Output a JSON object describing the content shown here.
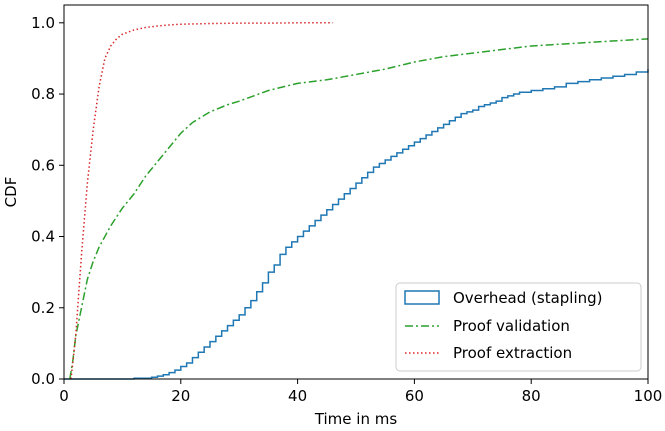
{
  "chart_data": {
    "type": "line",
    "title": "",
    "xlabel": "Time in ms",
    "ylabel": "CDF",
    "xlim": [
      0,
      100
    ],
    "ylim": [
      0,
      1.05
    ],
    "xticks": [
      0,
      20,
      40,
      60,
      80,
      100
    ],
    "yticks": [
      0.0,
      0.2,
      0.4,
      0.6,
      0.8,
      1.0
    ],
    "xtick_labels": [
      "0",
      "20",
      "40",
      "60",
      "80",
      "100"
    ],
    "ytick_labels": [
      "0.0",
      "0.2",
      "0.4",
      "0.6",
      "0.8",
      "1.0"
    ],
    "grid": false,
    "legend_position": "lower-right",
    "series": [
      {
        "name": "Overhead (stapling)",
        "style": "steps",
        "color": "#1f77b4",
        "x": [
          0,
          9,
          12,
          15,
          16,
          17,
          18,
          19,
          20,
          21,
          22,
          23,
          24,
          25,
          26,
          27,
          28,
          29,
          30,
          31,
          32,
          33,
          34,
          35,
          36,
          37,
          38,
          39,
          40,
          41,
          42,
          43,
          44,
          45,
          46,
          47,
          48,
          49,
          50,
          51,
          52,
          53,
          54,
          55,
          56,
          57,
          58,
          59,
          60,
          61,
          62,
          63,
          64,
          65,
          66,
          67,
          68,
          69,
          70,
          71,
          72,
          73,
          74,
          75,
          76,
          77,
          78,
          80,
          82,
          84,
          86,
          88,
          90,
          92,
          94,
          96,
          98,
          100
        ],
        "y": [
          0.0,
          0.0,
          0.002,
          0.005,
          0.008,
          0.012,
          0.018,
          0.025,
          0.035,
          0.045,
          0.06,
          0.075,
          0.09,
          0.105,
          0.12,
          0.135,
          0.15,
          0.165,
          0.18,
          0.2,
          0.22,
          0.245,
          0.27,
          0.3,
          0.32,
          0.35,
          0.37,
          0.385,
          0.4,
          0.415,
          0.43,
          0.445,
          0.46,
          0.475,
          0.49,
          0.505,
          0.52,
          0.535,
          0.55,
          0.565,
          0.58,
          0.595,
          0.605,
          0.615,
          0.625,
          0.635,
          0.645,
          0.655,
          0.665,
          0.675,
          0.685,
          0.695,
          0.705,
          0.715,
          0.725,
          0.735,
          0.745,
          0.75,
          0.755,
          0.765,
          0.77,
          0.775,
          0.78,
          0.79,
          0.795,
          0.8,
          0.805,
          0.81,
          0.815,
          0.82,
          0.83,
          0.835,
          0.84,
          0.845,
          0.85,
          0.855,
          0.862,
          0.87
        ]
      },
      {
        "name": "Proof validation",
        "style": "dashdot",
        "color": "#2ca02c",
        "x": [
          1,
          1.5,
          2,
          3,
          4,
          5,
          6,
          8,
          10,
          12,
          14,
          16,
          18,
          20,
          22,
          25,
          28,
          30,
          35,
          40,
          45,
          50,
          55,
          60,
          65,
          70,
          75,
          80,
          85,
          90,
          95,
          100
        ],
        "y": [
          0.0,
          0.05,
          0.12,
          0.2,
          0.28,
          0.33,
          0.37,
          0.43,
          0.48,
          0.52,
          0.57,
          0.61,
          0.65,
          0.69,
          0.72,
          0.75,
          0.77,
          0.78,
          0.81,
          0.83,
          0.84,
          0.855,
          0.87,
          0.89,
          0.905,
          0.915,
          0.925,
          0.935,
          0.94,
          0.945,
          0.95,
          0.955
        ]
      },
      {
        "name": "Proof extraction",
        "style": "dotted",
        "color": "#d62728",
        "x": [
          1.2,
          2,
          3,
          4,
          5,
          6,
          7,
          8,
          9,
          10,
          12,
          14,
          16,
          18,
          20,
          25,
          30,
          35,
          40,
          46
        ],
        "y": [
          0.0,
          0.12,
          0.35,
          0.55,
          0.7,
          0.82,
          0.9,
          0.935,
          0.955,
          0.968,
          0.98,
          0.987,
          0.991,
          0.994,
          0.996,
          0.998,
          0.999,
          0.999,
          1.0,
          1.0
        ]
      }
    ]
  }
}
